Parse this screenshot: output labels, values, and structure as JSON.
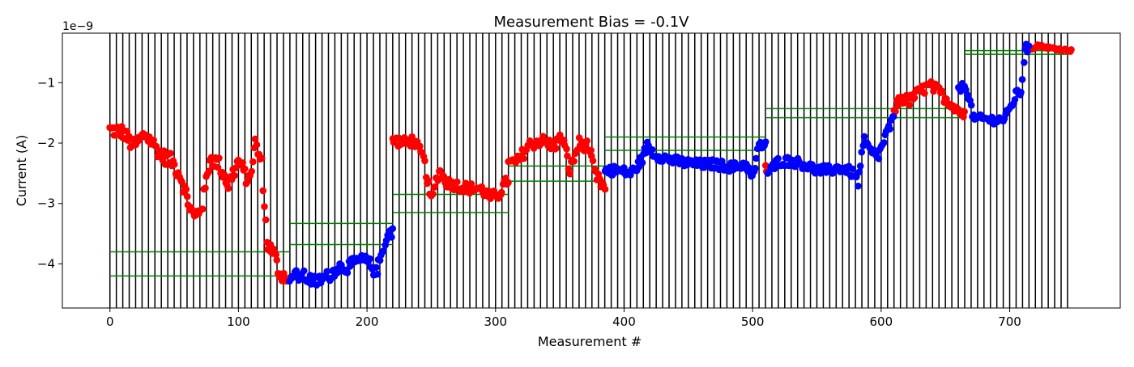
{
  "chart_data": {
    "type": "scatter",
    "title": "Measurement Bias = -0.1V",
    "xlabel": "Measurement #",
    "ylabel": "Current (A)",
    "y_offset_label": "1e−9",
    "xlim": [
      -37,
      786
    ],
    "ylim": [
      -4.73,
      -0.18
    ],
    "y_scale_factor": 1e-09,
    "x_ticks": [
      0,
      100,
      200,
      300,
      400,
      500,
      600,
      700
    ],
    "x_tick_labels": [
      "0",
      "100",
      "200",
      "300",
      "400",
      "500",
      "600",
      "700"
    ],
    "y_ticks": [
      -4,
      -3,
      -2,
      -1
    ],
    "y_tick_labels": [
      "−4",
      "−3",
      "−2",
      "−1"
    ],
    "grid": false,
    "vertical_lines": {
      "color": "#000000",
      "start": 0,
      "end": 745,
      "step": 5
    },
    "threshold_lines": {
      "color": "#008000",
      "segments": [
        {
          "x0": 0,
          "x1": 140,
          "y": -3.8
        },
        {
          "x0": 0,
          "x1": 140,
          "y": -4.2
        },
        {
          "x0": 140,
          "x1": 220,
          "y": -3.33
        },
        {
          "x0": 140,
          "x1": 220,
          "y": -3.68
        },
        {
          "x0": 220,
          "x1": 310,
          "y": -2.85
        },
        {
          "x0": 220,
          "x1": 310,
          "y": -3.15
        },
        {
          "x0": 310,
          "x1": 385,
          "y": -2.38
        },
        {
          "x0": 310,
          "x1": 385,
          "y": -2.63
        },
        {
          "x0": 385,
          "x1": 510,
          "y": -1.9
        },
        {
          "x0": 385,
          "x1": 510,
          "y": -2.12
        },
        {
          "x0": 510,
          "x1": 665,
          "y": -1.43
        },
        {
          "x0": 510,
          "x1": 665,
          "y": -1.58
        },
        {
          "x0": 665,
          "x1": 745,
          "y": -0.47
        },
        {
          "x0": 665,
          "x1": 745,
          "y": -0.53
        }
      ]
    },
    "series": [
      {
        "color": "#ff0000",
        "segments": [
          {
            "x0": 0,
            "x1": 140,
            "anchors": [
              [
                0,
                -1.78
              ],
              [
                10,
                -1.82
              ],
              [
                18,
                -2.05
              ],
              [
                28,
                -1.85
              ],
              [
                40,
                -2.2
              ],
              [
                48,
                -2.3
              ],
              [
                55,
                -2.55
              ],
              [
                62,
                -3.05
              ],
              [
                66,
                -3.25
              ],
              [
                72,
                -3.0
              ],
              [
                78,
                -2.25
              ],
              [
                85,
                -2.35
              ],
              [
                92,
                -2.7
              ],
              [
                100,
                -2.3
              ],
              [
                108,
                -2.65
              ],
              [
                113,
                -2.0
              ],
              [
                118,
                -2.35
              ],
              [
                122,
                -3.65
              ],
              [
                128,
                -3.85
              ],
              [
                132,
                -4.15
              ],
              [
                136,
                -4.2
              ],
              [
                140,
                -4.3
              ]
            ],
            "jitter": 0.12,
            "step": 1
          },
          {
            "x0": 220,
            "x1": 310,
            "anchors": [
              [
                220,
                -1.95
              ],
              [
                230,
                -2.0
              ],
              [
                236,
                -1.95
              ],
              [
                244,
                -2.25
              ],
              [
                250,
                -2.95
              ],
              [
                256,
                -2.45
              ],
              [
                262,
                -2.65
              ],
              [
                270,
                -2.7
              ],
              [
                280,
                -2.75
              ],
              [
                288,
                -2.75
              ],
              [
                296,
                -2.9
              ],
              [
                302,
                -2.85
              ],
              [
                310,
                -2.6
              ]
            ],
            "jitter": 0.09,
            "step": 1
          },
          {
            "x0": 310,
            "x1": 385,
            "anchors": [
              [
                310,
                -2.35
              ],
              [
                318,
                -2.3
              ],
              [
                325,
                -2.05
              ],
              [
                335,
                -1.95
              ],
              [
                345,
                -2.05
              ],
              [
                352,
                -1.9
              ],
              [
                358,
                -2.45
              ],
              [
                365,
                -2.0
              ],
              [
                372,
                -2.05
              ],
              [
                378,
                -2.55
              ],
              [
                385,
                -2.75
              ]
            ],
            "jitter": 0.1,
            "step": 1
          },
          {
            "x0": 510,
            "x1": 512,
            "anchors": [
              [
                510,
                -2.45
              ],
              [
                512,
                -2.5
              ]
            ],
            "jitter": 0.1,
            "step": 1
          },
          {
            "x0": 610,
            "x1": 665,
            "anchors": [
              [
                610,
                -1.45
              ],
              [
                615,
                -1.25
              ],
              [
                622,
                -1.3
              ],
              [
                630,
                -1.15
              ],
              [
                638,
                -1.05
              ],
              [
                645,
                -1.15
              ],
              [
                652,
                -1.3
              ],
              [
                658,
                -1.4
              ],
              [
                665,
                -1.55
              ]
            ],
            "jitter": 0.09,
            "step": 1
          },
          {
            "x0": 715,
            "x1": 748,
            "anchors": [
              [
                715,
                -0.45
              ],
              [
                722,
                -0.38
              ],
              [
                730,
                -0.42
              ],
              [
                740,
                -0.45
              ],
              [
                748,
                -0.47
              ]
            ],
            "jitter": 0.02,
            "step": 1
          }
        ]
      },
      {
        "color": "#0000ff",
        "segments": [
          {
            "x0": 140,
            "x1": 220,
            "anchors": [
              [
                140,
                -4.2
              ],
              [
                150,
                -4.2
              ],
              [
                160,
                -4.3
              ],
              [
                170,
                -4.2
              ],
              [
                178,
                -4.05
              ],
              [
                185,
                -4.05
              ],
              [
                193,
                -3.95
              ],
              [
                200,
                -3.95
              ],
              [
                207,
                -4.15
              ],
              [
                210,
                -3.95
              ],
              [
                215,
                -3.55
              ],
              [
                220,
                -3.45
              ]
            ],
            "jitter": 0.1,
            "step": 1
          },
          {
            "x0": 385,
            "x1": 510,
            "anchors": [
              [
                385,
                -2.45
              ],
              [
                395,
                -2.45
              ],
              [
                405,
                -2.5
              ],
              [
                412,
                -2.35
              ],
              [
                418,
                -2.05
              ],
              [
                425,
                -2.2
              ],
              [
                440,
                -2.3
              ],
              [
                455,
                -2.35
              ],
              [
                470,
                -2.35
              ],
              [
                485,
                -2.4
              ],
              [
                495,
                -2.35
              ],
              [
                500,
                -2.6
              ],
              [
                505,
                -2.05
              ],
              [
                510,
                -2.0
              ]
            ],
            "jitter": 0.08,
            "step": 1
          },
          {
            "x0": 512,
            "x1": 610,
            "anchors": [
              [
                512,
                -2.5
              ],
              [
                520,
                -2.3
              ],
              [
                530,
                -2.3
              ],
              [
                540,
                -2.35
              ],
              [
                550,
                -2.45
              ],
              [
                560,
                -2.45
              ],
              [
                570,
                -2.4
              ],
              [
                578,
                -2.5
              ],
              [
                582,
                -2.65
              ],
              [
                587,
                -1.95
              ],
              [
                592,
                -2.15
              ],
              [
                598,
                -2.2
              ],
              [
                604,
                -1.85
              ],
              [
                610,
                -1.6
              ]
            ],
            "jitter": 0.08,
            "step": 1
          },
          {
            "x0": 660,
            "x1": 715,
            "anchors": [
              [
                660,
                -1.1
              ],
              [
                666,
                -1.05
              ],
              [
                672,
                -1.6
              ],
              [
                680,
                -1.6
              ],
              [
                690,
                -1.62
              ],
              [
                696,
                -1.6
              ],
              [
                700,
                -1.45
              ],
              [
                705,
                -1.2
              ],
              [
                709,
                -1.15
              ],
              [
                712,
                -0.4
              ],
              [
                715,
                -0.45
              ]
            ],
            "jitter": 0.07,
            "step": 1
          }
        ]
      }
    ]
  }
}
